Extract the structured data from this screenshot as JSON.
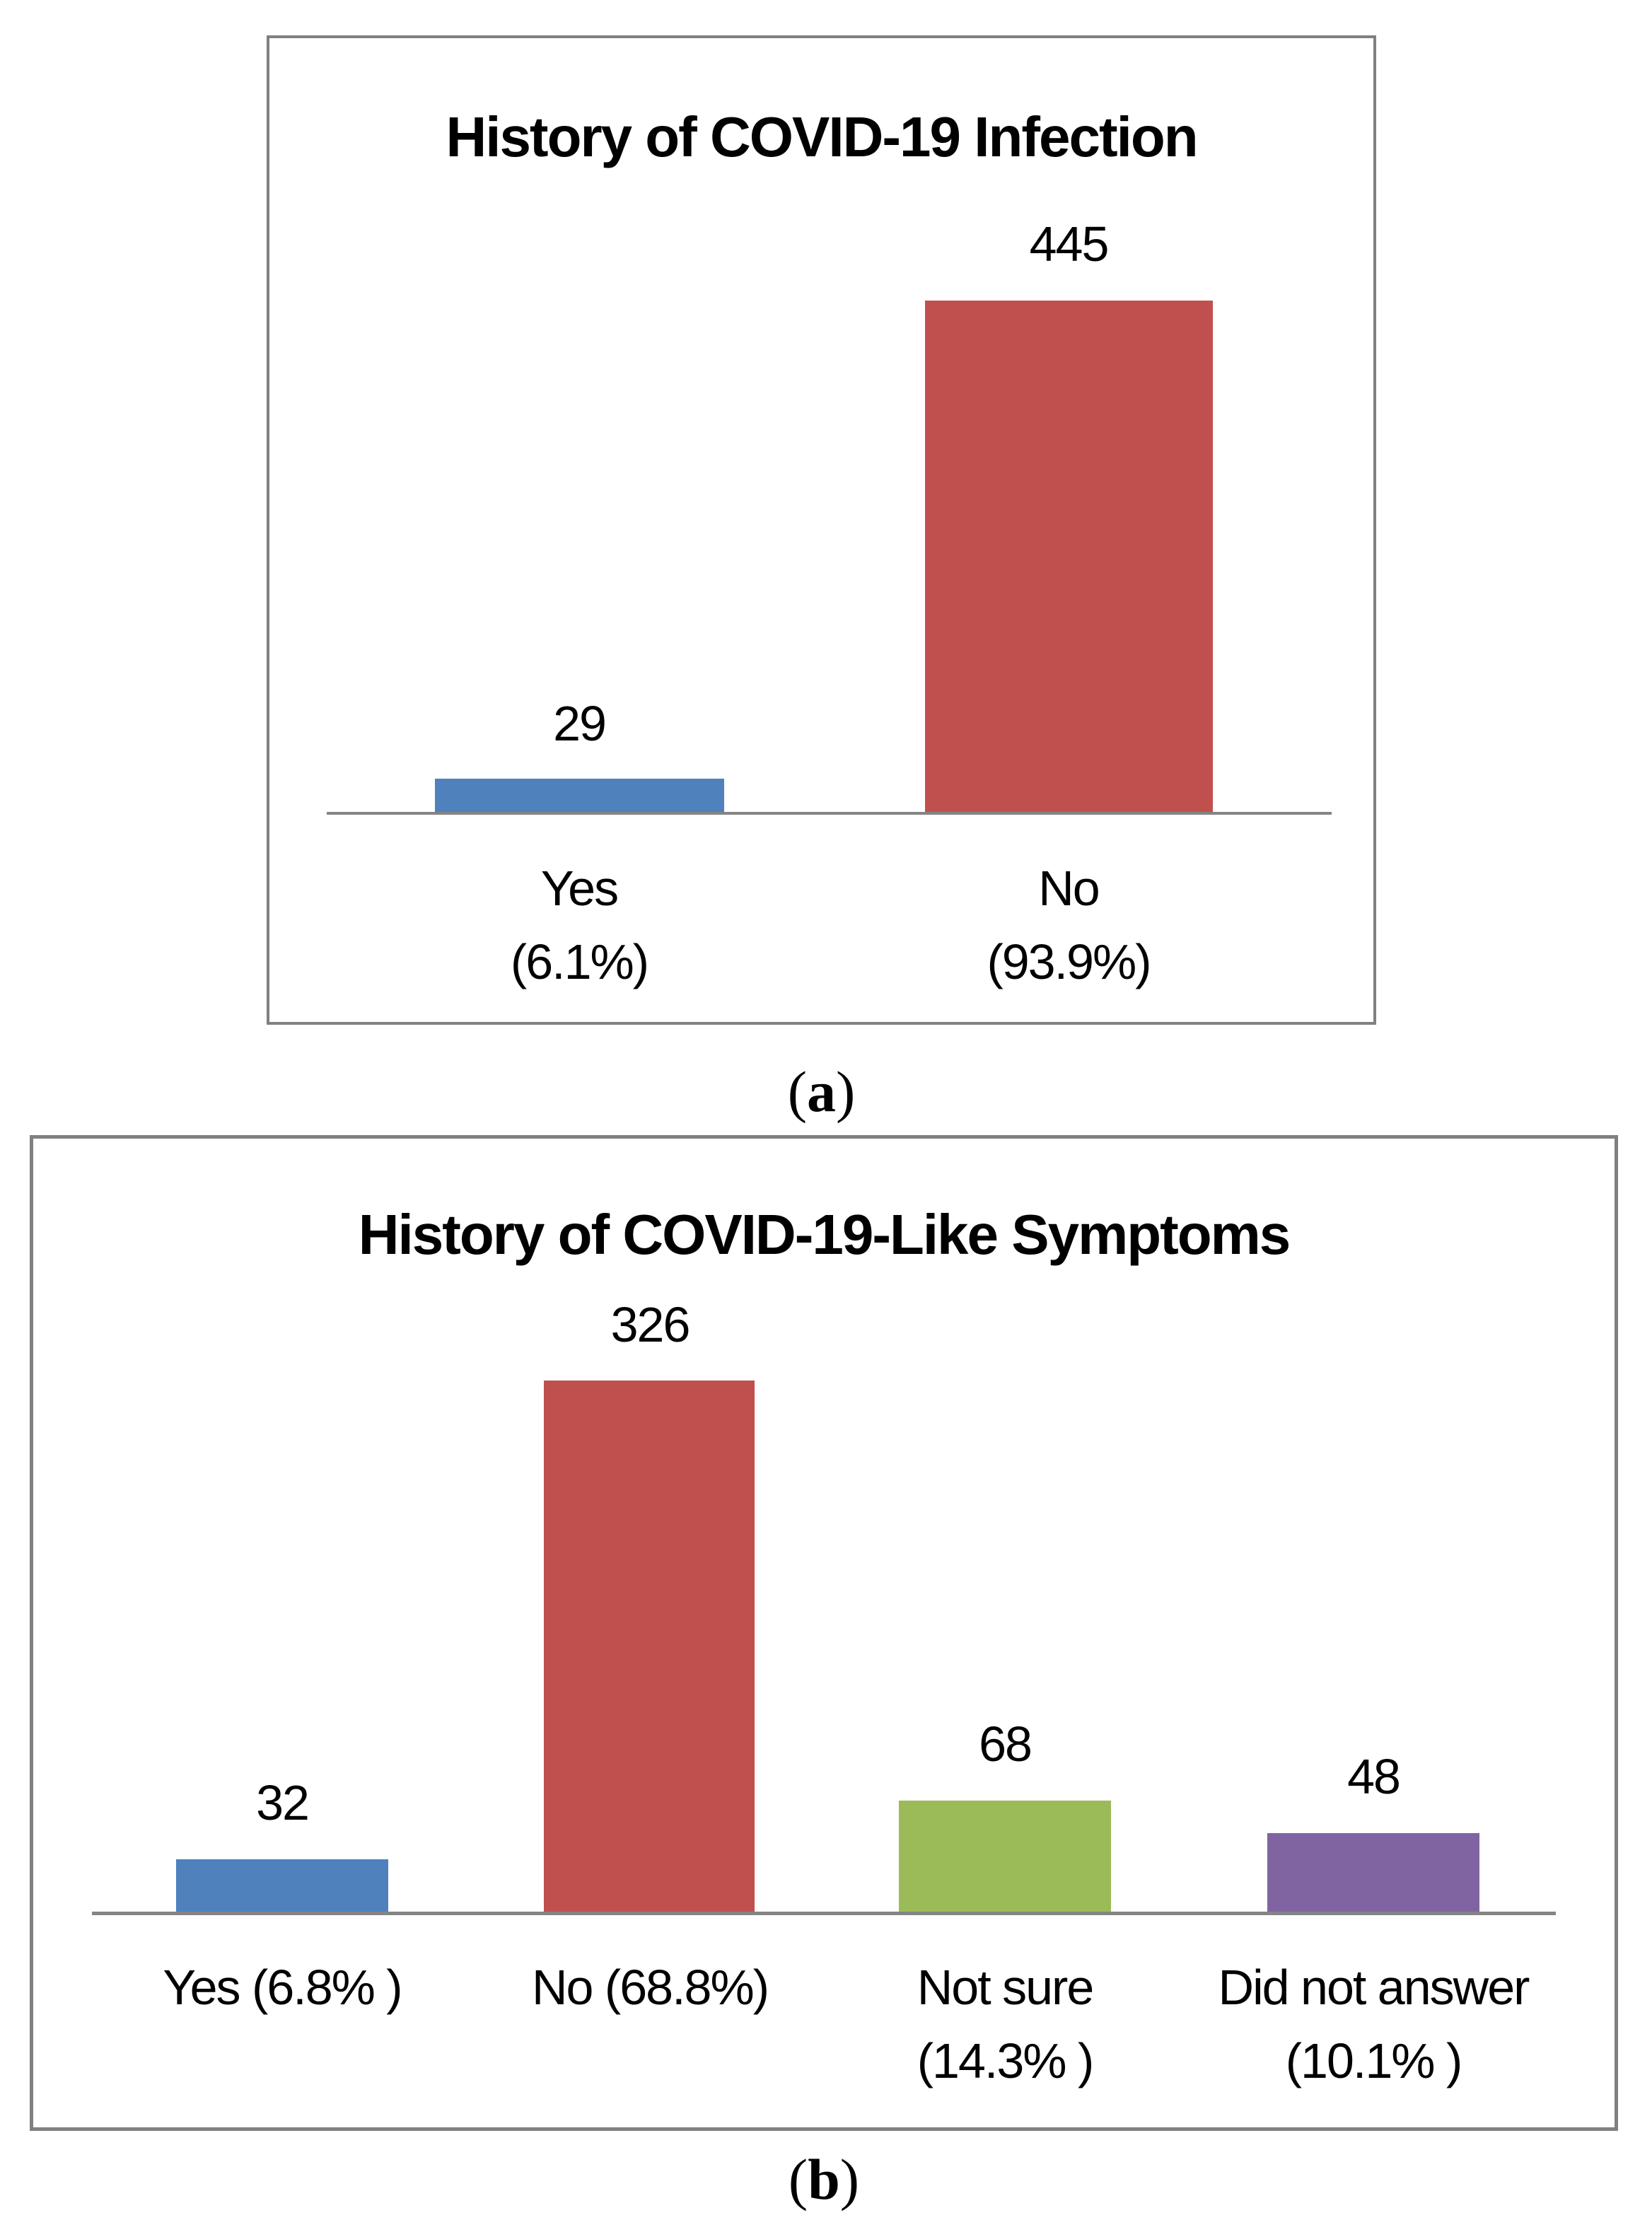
{
  "figure": {
    "captions": [
      {
        "open": "(",
        "letter": "a",
        "close": ")"
      },
      {
        "open": "(",
        "letter": "b",
        "close": ")"
      }
    ]
  },
  "colors": {
    "blue": "#4F81BD",
    "red": "#C0504D",
    "green": "#9BBB59",
    "purple": "#8064A2",
    "panel_border": "#808080",
    "axis_line": "#848484",
    "text": "#000000",
    "background": "#FFFFFF"
  },
  "chart_data": [
    {
      "type": "bar",
      "title": "History of COVID-19 Infection",
      "categories": [
        "Yes (6.1%)",
        "No (93.9%)"
      ],
      "values": [
        29,
        445
      ],
      "percentages": [
        "6.1%",
        "93.9%"
      ],
      "tick_lines": [
        [
          "Yes",
          "(6.1%)"
        ],
        [
          "No",
          "(93.9%)"
        ]
      ],
      "bar_colors": [
        "#4F81BD",
        "#C0504D"
      ],
      "xlabel": "",
      "ylabel": "",
      "grid": false,
      "y_axis_visible": false,
      "legend_position": "none"
    },
    {
      "type": "bar",
      "title": "History of COVID-19-Like Symptoms",
      "categories": [
        "Yes (6.8% )",
        "No (68.8%)",
        "Not sure (14.3% )",
        "Did not answer (10.1% )"
      ],
      "values": [
        32,
        326,
        68,
        48
      ],
      "percentages": [
        "6.8%",
        "68.8%",
        "14.3%",
        "10.1%"
      ],
      "tick_lines": [
        [
          "Yes (6.8% )",
          ""
        ],
        [
          "No (68.8%)",
          ""
        ],
        [
          "Not sure",
          "(14.3% )"
        ],
        [
          "Did not answer",
          "(10.1% )"
        ]
      ],
      "bar_colors": [
        "#4F81BD",
        "#C0504D",
        "#9BBB59",
        "#8064A2"
      ],
      "xlabel": "",
      "ylabel": "",
      "grid": false,
      "y_axis_visible": false,
      "legend_position": "none"
    }
  ]
}
